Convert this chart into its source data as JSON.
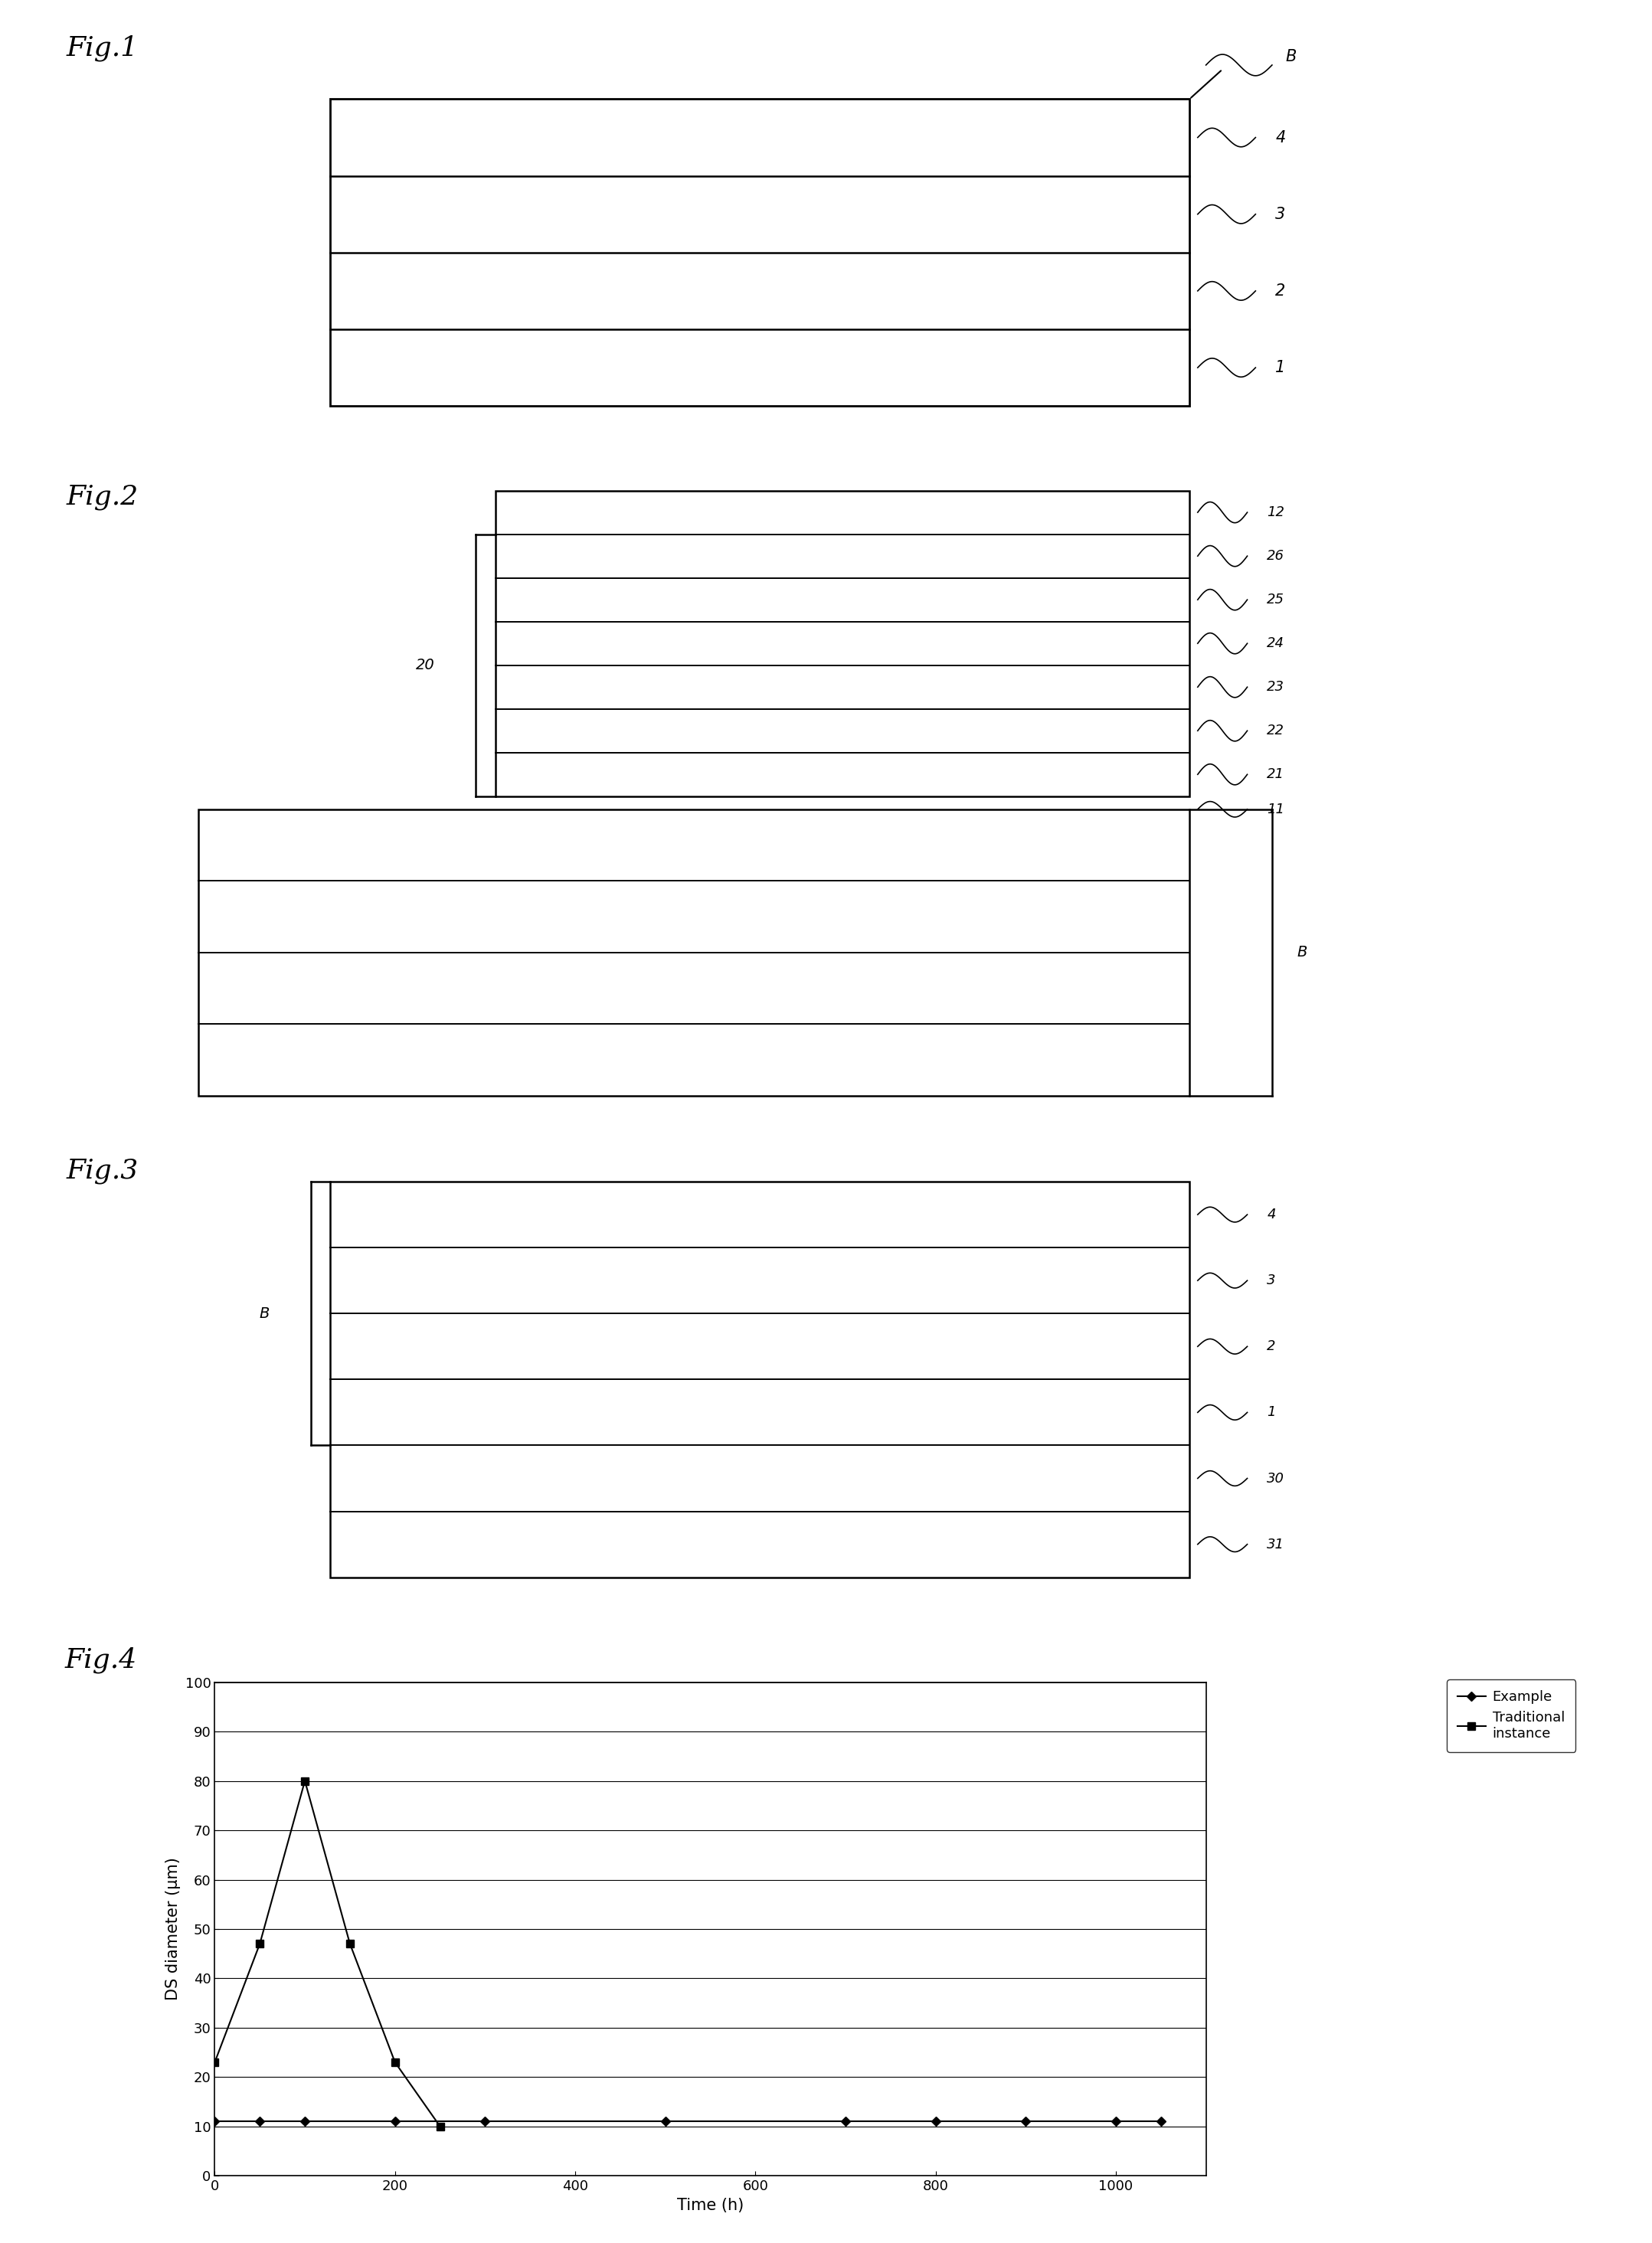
{
  "fig_labels": [
    "Fig.1",
    "Fig.2",
    "Fig.3",
    "Fig.4"
  ],
  "fig1_layers": [
    "4",
    "3",
    "2",
    "1"
  ],
  "fig1_label_B": "B",
  "fig2_top_layers": [
    "12",
    "26",
    "25",
    "24",
    "23",
    "22",
    "21"
  ],
  "fig2_bottom_label": "11",
  "fig2_brace_label": "20",
  "fig2_B_label": "B",
  "fig3_layers": [
    "4",
    "3",
    "2",
    "1",
    "30",
    "31"
  ],
  "fig3_B_label": "B",
  "fig4_xlabel": "Time (h)",
  "fig4_ylabel": "DS diameter (μm)",
  "fig4_ylim": [
    0,
    100
  ],
  "fig4_xlim": [
    0,
    1100
  ],
  "fig4_yticks": [
    0,
    10,
    20,
    30,
    40,
    50,
    60,
    70,
    80,
    90,
    100
  ],
  "fig4_xticks": [
    0,
    200,
    400,
    600,
    800,
    1000
  ],
  "fig4_example_x": [
    0,
    50,
    100,
    200,
    300,
    500,
    700,
    800,
    900,
    1000,
    1050
  ],
  "fig4_example_y": [
    11,
    11,
    11,
    11,
    11,
    11,
    11,
    11,
    11,
    11,
    11
  ],
  "fig4_traditional_x": [
    0,
    50,
    100,
    150,
    200,
    250
  ],
  "fig4_traditional_y": [
    23,
    47,
    80,
    47,
    23,
    10
  ],
  "fig4_legend_example": "Example",
  "fig4_legend_traditional": "Traditional\ninstance",
  "line_color": "#000000",
  "bg_color": "#ffffff"
}
